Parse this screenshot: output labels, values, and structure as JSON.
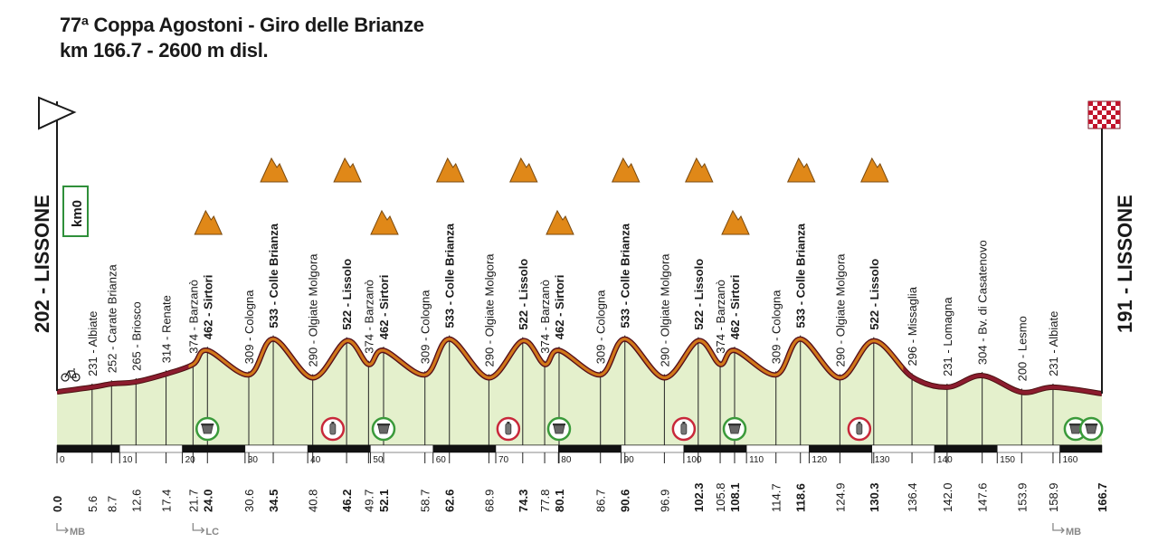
{
  "title": {
    "line1": "77ª Coppa Agostoni - Giro delle Brianze",
    "line2": "km 166.7 - 2600 m disl."
  },
  "start": {
    "label": "202 - LISSONE",
    "km0": "km0"
  },
  "finish": {
    "label": "191 - LISSONE"
  },
  "colors": {
    "fill": "#e4f0cc",
    "climb_line": "#d07a18",
    "flat_line": "#8c1c2e",
    "cat_icon": "#e08818",
    "feed_ring": "#3a9a3a",
    "bottle_ring": "#c8283a"
  },
  "chart_data": {
    "type": "area",
    "title": "77ª Coppa Agostoni - Giro delle Brianze",
    "xlabel": "",
    "ylabel": "",
    "xlim": [
      0,
      166.7
    ],
    "x_ticks": [
      0,
      10,
      20,
      30,
      40,
      50,
      60,
      70,
      80,
      90,
      100,
      110,
      120,
      130,
      140,
      150,
      160
    ],
    "profile": [
      {
        "km": 0.0,
        "alt": 202
      },
      {
        "km": 5.6,
        "alt": 231
      },
      {
        "km": 8.7,
        "alt": 252
      },
      {
        "km": 12.6,
        "alt": 265
      },
      {
        "km": 17.4,
        "alt": 314
      },
      {
        "km": 21.7,
        "alt": 374
      },
      {
        "km": 24.0,
        "alt": 462
      },
      {
        "km": 30.6,
        "alt": 309
      },
      {
        "km": 34.5,
        "alt": 533
      },
      {
        "km": 40.8,
        "alt": 290
      },
      {
        "km": 46.2,
        "alt": 522
      },
      {
        "km": 49.7,
        "alt": 374
      },
      {
        "km": 52.1,
        "alt": 462
      },
      {
        "km": 58.7,
        "alt": 309
      },
      {
        "km": 62.6,
        "alt": 533
      },
      {
        "km": 68.9,
        "alt": 290
      },
      {
        "km": 74.3,
        "alt": 522
      },
      {
        "km": 77.8,
        "alt": 374
      },
      {
        "km": 80.1,
        "alt": 462
      },
      {
        "km": 86.7,
        "alt": 309
      },
      {
        "km": 90.6,
        "alt": 533
      },
      {
        "km": 96.9,
        "alt": 290
      },
      {
        "km": 102.3,
        "alt": 522
      },
      {
        "km": 105.8,
        "alt": 374
      },
      {
        "km": 108.1,
        "alt": 462
      },
      {
        "km": 114.7,
        "alt": 309
      },
      {
        "km": 118.6,
        "alt": 533
      },
      {
        "km": 124.9,
        "alt": 290
      },
      {
        "km": 130.3,
        "alt": 522
      },
      {
        "km": 136.4,
        "alt": 296
      },
      {
        "km": 142.0,
        "alt": 231
      },
      {
        "km": 147.6,
        "alt": 304
      },
      {
        "km": 153.9,
        "alt": 200
      },
      {
        "km": 158.9,
        "alt": 231
      },
      {
        "km": 166.7,
        "alt": 191
      }
    ],
    "points": [
      {
        "km": "0.0",
        "label": "",
        "bold": true
      },
      {
        "km": "5.6",
        "label": "231 - Albiate",
        "bold": false
      },
      {
        "km": "8.7",
        "label": "252 - Carate Brianza",
        "bold": false
      },
      {
        "km": "12.6",
        "label": "265 - Briosco",
        "bold": false
      },
      {
        "km": "17.4",
        "label": "314 - Renate",
        "bold": false
      },
      {
        "km": "21.7",
        "label": "374 - Barzanò",
        "bold": false
      },
      {
        "km": "24.0",
        "label": "462 - Sirtori",
        "bold": true
      },
      {
        "km": "30.6",
        "label": "309 - Cologna",
        "bold": false
      },
      {
        "km": "34.5",
        "label": "533 - Colle Brianza",
        "bold": true
      },
      {
        "km": "40.8",
        "label": "290 - Olgiate Molgora",
        "bold": false
      },
      {
        "km": "46.2",
        "label": "522 - Lissolo",
        "bold": true
      },
      {
        "km": "49.7",
        "label": "374 - Barzanò",
        "bold": false
      },
      {
        "km": "52.1",
        "label": "462 - Sirtori",
        "bold": true
      },
      {
        "km": "58.7",
        "label": "309 - Cologna",
        "bold": false
      },
      {
        "km": "62.6",
        "label": "533 - Colle Brianza",
        "bold": true
      },
      {
        "km": "68.9",
        "label": "290 - Olgiate Molgora",
        "bold": false
      },
      {
        "km": "74.3",
        "label": "522 - Lissolo",
        "bold": true
      },
      {
        "km": "77.8",
        "label": "374 - Barzanò",
        "bold": false
      },
      {
        "km": "80.1",
        "label": "462 - Sirtori",
        "bold": true
      },
      {
        "km": "86.7",
        "label": "309 - Cologna",
        "bold": false
      },
      {
        "km": "90.6",
        "label": "533 - Colle Brianza",
        "bold": true
      },
      {
        "km": "96.9",
        "label": "290 - Olgiate Molgora",
        "bold": false
      },
      {
        "km": "102.3",
        "label": "522 - Lissolo",
        "bold": true
      },
      {
        "km": "105.8",
        "label": "374 - Barzanò",
        "bold": false
      },
      {
        "km": "108.1",
        "label": "462 - Sirtori",
        "bold": true
      },
      {
        "km": "114.7",
        "label": "309 - Cologna",
        "bold": false
      },
      {
        "km": "118.6",
        "label": "533 - Colle Brianza",
        "bold": true
      },
      {
        "km": "124.9",
        "label": "290 - Olgiate Molgora",
        "bold": false
      },
      {
        "km": "130.3",
        "label": "522 - Lissolo",
        "bold": true
      },
      {
        "km": "136.4",
        "label": "296 - Missaglia",
        "bold": false
      },
      {
        "km": "142.0",
        "label": "231 - Lomagna",
        "bold": false
      },
      {
        "km": "147.6",
        "label": "304 - Bv. di Casatenovo",
        "bold": false
      },
      {
        "km": "153.9",
        "label": "200 - Lesmo",
        "bold": false
      },
      {
        "km": "158.9",
        "label": "231 - Albiate",
        "bold": false
      },
      {
        "km": "166.7",
        "label": "",
        "bold": true
      }
    ],
    "climb_summits_km": [
      24.0,
      34.5,
      46.2,
      52.1,
      62.6,
      74.3,
      80.1,
      90.6,
      102.3,
      108.1,
      118.6,
      130.3
    ],
    "feed_zones_km": [
      24.0,
      52.1,
      80.1,
      108.1,
      162.5,
      165.0
    ],
    "bottle_zones_km": [
      44.0,
      72.0,
      100.0,
      128.0
    ],
    "bottom_markers": [
      {
        "km": 0.0,
        "label": "MB"
      },
      {
        "km": 21.7,
        "label": "LC"
      },
      {
        "km": 158.9,
        "label": "MB"
      }
    ]
  }
}
